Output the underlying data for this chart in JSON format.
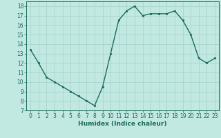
{
  "x": [
    0,
    1,
    2,
    3,
    4,
    5,
    6,
    7,
    8,
    9,
    10,
    11,
    12,
    13,
    14,
    15,
    16,
    17,
    18,
    19,
    20,
    21,
    22,
    23
  ],
  "y": [
    13.4,
    12.0,
    10.5,
    10.0,
    9.5,
    9.0,
    8.5,
    8.0,
    7.5,
    9.5,
    13.0,
    16.5,
    17.5,
    18.0,
    17.0,
    17.2,
    17.2,
    17.2,
    17.5,
    16.5,
    15.0,
    12.5,
    12.0,
    12.5
  ],
  "line_color": "#1a6b5a",
  "marker": "s",
  "marker_size": 2.0,
  "bg_color": "#c2e8e2",
  "grid_color": "#a8d4ce",
  "xlabel": "Humidex (Indice chaleur)",
  "xlim": [
    -0.5,
    23.5
  ],
  "ylim": [
    7,
    18.5
  ],
  "yticks": [
    7,
    8,
    9,
    10,
    11,
    12,
    13,
    14,
    15,
    16,
    17,
    18
  ],
  "xticks": [
    0,
    1,
    2,
    3,
    4,
    5,
    6,
    7,
    8,
    9,
    10,
    11,
    12,
    13,
    14,
    15,
    16,
    17,
    18,
    19,
    20,
    21,
    22,
    23
  ],
  "xlabel_fontsize": 6.5,
  "tick_fontsize": 5.5,
  "line_width": 1.0
}
